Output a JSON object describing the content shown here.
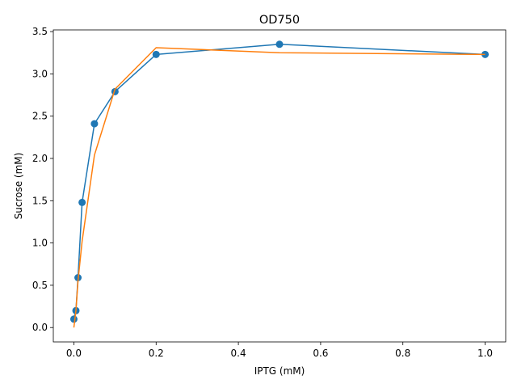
{
  "chart_data": {
    "type": "line",
    "title": "OD750",
    "xlabel": "IPTG (mM)",
    "ylabel": "Sucrose (mM)",
    "xlim": [
      -0.05,
      1.05
    ],
    "ylim": [
      -0.17,
      3.52
    ],
    "x_ticks": [
      0.0,
      0.2,
      0.4,
      0.6,
      0.8,
      1.0
    ],
    "y_ticks": [
      0.0,
      0.5,
      1.0,
      1.5,
      2.0,
      2.5,
      3.0,
      3.5
    ],
    "grid": false,
    "series": [
      {
        "color": "#1f77b4",
        "marker": "circle",
        "x": [
          0,
          0.005,
          0.01,
          0.02,
          0.05,
          0.1,
          0.2,
          0.5,
          1.0
        ],
        "y": [
          0.1,
          0.2,
          0.59,
          1.48,
          2.41,
          2.79,
          3.23,
          3.35,
          3.23
        ]
      },
      {
        "color": "#ff7f0e",
        "marker": "none",
        "x": [
          0,
          0.005,
          0.01,
          0.02,
          0.05,
          0.1,
          0.2,
          0.5,
          1.0
        ],
        "y": [
          0.0,
          0.2,
          0.55,
          1.02,
          2.04,
          2.82,
          3.31,
          3.25,
          3.23
        ]
      }
    ]
  }
}
